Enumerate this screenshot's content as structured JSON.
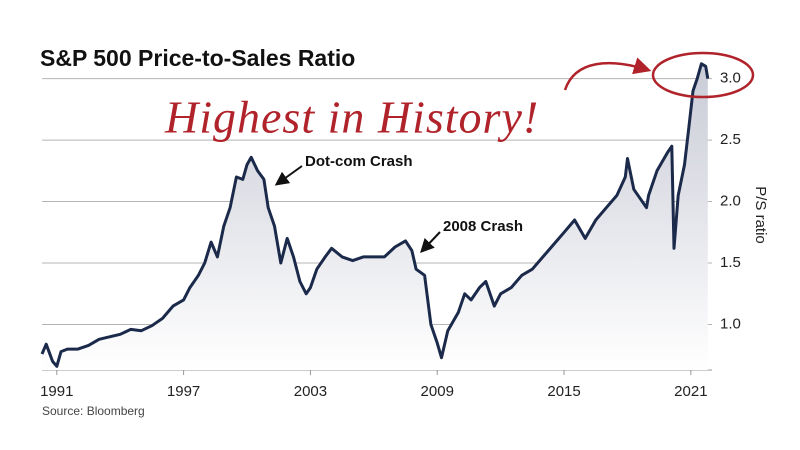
{
  "chart_data": {
    "type": "line",
    "title": "S&P 500 Price-to-Sales Ratio",
    "y_label": "P/S ratio",
    "source": "Source: Bloomberg",
    "annotations": [
      "Dot-com Crash",
      "2008 Crash",
      "Highest in History!"
    ],
    "color": "#1b2a4a",
    "grid": true,
    "y_axis_side": "right",
    "x": [
      1990.3,
      1990.5,
      1990.8,
      1991.0,
      1991.2,
      1991.5,
      1992.0,
      1992.5,
      1993.0,
      1993.5,
      1994.0,
      1994.5,
      1995.0,
      1995.5,
      1996.0,
      1996.5,
      1997.0,
      1997.3,
      1997.7,
      1998.0,
      1998.3,
      1998.6,
      1998.9,
      1999.2,
      1999.5,
      1999.8,
      2000.0,
      2000.2,
      2000.5,
      2000.8,
      2001.0,
      2001.3,
      2001.6,
      2001.9,
      2002.2,
      2002.5,
      2002.8,
      2003.0,
      2003.3,
      2003.7,
      2004.0,
      2004.5,
      2005.0,
      2005.5,
      2006.0,
      2006.5,
      2007.0,
      2007.5,
      2007.8,
      2008.0,
      2008.4,
      2008.7,
      2009.0,
      2009.2,
      2009.5,
      2010.0,
      2010.3,
      2010.6,
      2011.0,
      2011.3,
      2011.7,
      2012.0,
      2012.5,
      2013.0,
      2013.5,
      2014.0,
      2014.5,
      2015.0,
      2015.5,
      2016.0,
      2016.5,
      2017.0,
      2017.5,
      2017.9,
      2018.0,
      2018.3,
      2018.9,
      2019.0,
      2019.4,
      2019.9,
      2020.1,
      2020.2,
      2020.4,
      2020.7,
      2020.9,
      2021.1,
      2021.3,
      2021.5,
      2021.7,
      2021.8
    ],
    "values": [
      0.76,
      0.84,
      0.7,
      0.66,
      0.78,
      0.8,
      0.8,
      0.83,
      0.88,
      0.9,
      0.92,
      0.96,
      0.95,
      0.99,
      1.05,
      1.15,
      1.2,
      1.3,
      1.4,
      1.5,
      1.67,
      1.55,
      1.8,
      1.95,
      2.2,
      2.18,
      2.3,
      2.36,
      2.25,
      2.18,
      1.95,
      1.8,
      1.5,
      1.7,
      1.55,
      1.35,
      1.25,
      1.3,
      1.45,
      1.55,
      1.62,
      1.55,
      1.52,
      1.55,
      1.55,
      1.55,
      1.63,
      1.68,
      1.6,
      1.45,
      1.4,
      1.0,
      0.85,
      0.73,
      0.95,
      1.1,
      1.25,
      1.2,
      1.3,
      1.35,
      1.15,
      1.25,
      1.3,
      1.4,
      1.45,
      1.55,
      1.65,
      1.75,
      1.85,
      1.7,
      1.85,
      1.95,
      2.05,
      2.2,
      2.35,
      2.1,
      1.95,
      2.05,
      2.25,
      2.4,
      2.45,
      1.62,
      2.05,
      2.3,
      2.6,
      2.9,
      3.0,
      3.12,
      3.1,
      3.0
    ],
    "xlim": [
      1990.3,
      2022
    ],
    "ylim": [
      0.63,
      3.2
    ],
    "xticks": [
      1991,
      1997,
      2003,
      2009,
      2015,
      2021
    ],
    "yticks": [
      {
        "value": 1,
        "label": "1.0"
      },
      {
        "value": 1.5,
        "label": "1.5"
      },
      {
        "value": 2,
        "label": "2.0"
      },
      {
        "value": 2.5,
        "label": "2.5"
      },
      {
        "value": 3,
        "label": "3.0"
      }
    ]
  }
}
